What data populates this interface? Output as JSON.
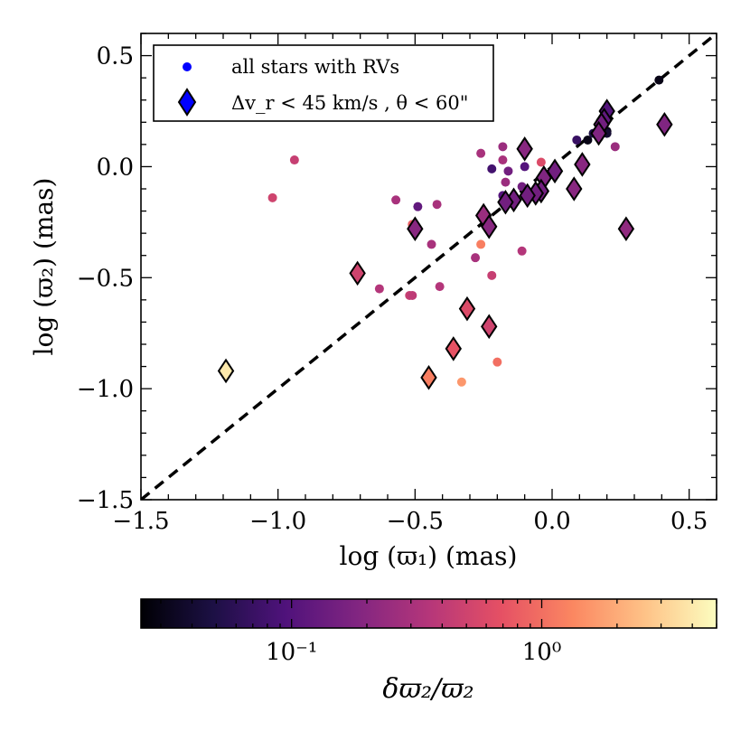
{
  "chart_data": {
    "type": "scatter",
    "xlabel": "log (ϖ₁) (mas)",
    "ylabel": "log (ϖ₂) (mas)",
    "xlim": [
      -1.5,
      0.6
    ],
    "ylim": [
      -1.5,
      0.6
    ],
    "x_ticks": [
      {
        "value": -1.5,
        "label": "−1.5"
      },
      {
        "value": -1.0,
        "label": "−1.0"
      },
      {
        "value": -0.5,
        "label": "−0.5"
      },
      {
        "value": 0.0,
        "label": "0.0"
      },
      {
        "value": 0.5,
        "label": "0.5"
      }
    ],
    "y_ticks": [
      {
        "value": -1.5,
        "label": "−1.5"
      },
      {
        "value": -1.0,
        "label": "−1.0"
      },
      {
        "value": -0.5,
        "label": "−0.5"
      },
      {
        "value": 0.0,
        "label": "0.0"
      },
      {
        "value": 0.5,
        "label": "0.5"
      }
    ],
    "reference_line": {
      "style": "dashed",
      "color": "#000000",
      "relation": "y = x"
    },
    "legend": {
      "position": "top-left",
      "entries": [
        {
          "label": "all stars with RVs",
          "marker": "circle",
          "color": "#0000ff"
        },
        {
          "label": "Δv_r < 45 km/s , θ < 60\"",
          "marker": "diamond",
          "color": "#0000ff"
        }
      ]
    },
    "colorbar": {
      "label": "δϖ₂/ϖ₂",
      "colormap": "magma",
      "scale": "log",
      "range": [
        0.025,
        5.0
      ],
      "ticks": [
        {
          "value": 0.1,
          "label": "10⁻¹"
        },
        {
          "value": 1.0,
          "label": "10⁰"
        }
      ],
      "stops": [
        "#000004",
        "#1c1044",
        "#4f127b",
        "#812581",
        "#b5367a",
        "#e55064",
        "#fb8761",
        "#fec287",
        "#fcfdbf"
      ]
    },
    "series": [
      {
        "name": "all stars with RVs",
        "marker": "circle",
        "points": [
          {
            "x": 0.39,
            "y": 0.39,
            "c": 0.03
          },
          {
            "x": 0.13,
            "y": 0.12,
            "c": 0.03
          },
          {
            "x": 0.2,
            "y": 0.16,
            "c": 0.03
          },
          {
            "x": 0.2,
            "y": 0.15,
            "c": 0.04
          },
          {
            "x": 0.17,
            "y": 0.13,
            "c": 0.04
          },
          {
            "x": 0.19,
            "y": 0.2,
            "c": 0.04
          },
          {
            "x": 0.15,
            "y": 0.15,
            "c": 0.05
          },
          {
            "x": 0.09,
            "y": 0.12,
            "c": 0.07
          },
          {
            "x": 0.23,
            "y": 0.09,
            "c": 0.25
          },
          {
            "x": -0.94,
            "y": 0.03,
            "c": 0.45
          },
          {
            "x": -1.02,
            "y": -0.14,
            "c": 0.5
          },
          {
            "x": -0.57,
            "y": -0.15,
            "c": 0.3
          },
          {
            "x": -0.49,
            "y": -0.18,
            "c": 0.12
          },
          {
            "x": -0.42,
            "y": -0.17,
            "c": 0.3
          },
          {
            "x": -0.51,
            "y": -0.26,
            "c": 0.8
          },
          {
            "x": -0.44,
            "y": -0.35,
            "c": 0.3
          },
          {
            "x": -0.41,
            "y": -0.54,
            "c": 0.35
          },
          {
            "x": -0.52,
            "y": -0.58,
            "c": 0.45
          },
          {
            "x": -0.51,
            "y": -0.58,
            "c": 0.4
          },
          {
            "x": -0.63,
            "y": -0.55,
            "c": 0.35
          },
          {
            "x": -0.26,
            "y": -0.35,
            "c": 1.2
          },
          {
            "x": -0.28,
            "y": -0.41,
            "c": 0.3
          },
          {
            "x": -0.22,
            "y": -0.49,
            "c": 0.45
          },
          {
            "x": -0.11,
            "y": -0.38,
            "c": 0.35
          },
          {
            "x": -0.2,
            "y": -0.88,
            "c": 1.0
          },
          {
            "x": -0.33,
            "y": -0.97,
            "c": 1.6
          },
          {
            "x": -0.26,
            "y": 0.06,
            "c": 0.3
          },
          {
            "x": -0.18,
            "y": 0.09,
            "c": 0.25
          },
          {
            "x": -0.18,
            "y": 0.03,
            "c": 0.3
          },
          {
            "x": -0.22,
            "y": -0.01,
            "c": 0.08
          },
          {
            "x": -0.16,
            "y": -0.02,
            "c": 0.15
          },
          {
            "x": -0.1,
            "y": 0.0,
            "c": 0.1
          },
          {
            "x": -0.17,
            "y": -0.07,
            "c": 0.25
          },
          {
            "x": -0.18,
            "y": -0.13,
            "c": 0.1
          },
          {
            "x": -0.11,
            "y": -0.09,
            "c": 0.15
          },
          {
            "x": -0.04,
            "y": 0.02,
            "c": 0.6
          },
          {
            "x": -0.02,
            "y": -0.04,
            "c": 0.3
          },
          {
            "x": 0.02,
            "y": -0.02,
            "c": 0.2
          }
        ]
      },
      {
        "name": "Δv_r < 45 km/s , θ < 60\"",
        "marker": "diamond",
        "points": [
          {
            "x": 0.2,
            "y": 0.25,
            "c": 0.1
          },
          {
            "x": 0.19,
            "y": 0.21,
            "c": 0.12
          },
          {
            "x": 0.18,
            "y": 0.19,
            "c": 0.15
          },
          {
            "x": 0.17,
            "y": 0.15,
            "c": 0.18
          },
          {
            "x": 0.41,
            "y": 0.19,
            "c": 0.18
          },
          {
            "x": 0.11,
            "y": 0.01,
            "c": 0.2
          },
          {
            "x": 0.08,
            "y": -0.1,
            "c": 0.2
          },
          {
            "x": 0.27,
            "y": -0.28,
            "c": 0.22
          },
          {
            "x": 0.01,
            "y": -0.02,
            "c": 0.15
          },
          {
            "x": -0.03,
            "y": -0.05,
            "c": 0.18
          },
          {
            "x": -0.04,
            "y": -0.11,
            "c": 0.15
          },
          {
            "x": -0.06,
            "y": -0.12,
            "c": 0.15
          },
          {
            "x": -0.09,
            "y": -0.13,
            "c": 0.15
          },
          {
            "x": -0.1,
            "y": 0.08,
            "c": 0.2
          },
          {
            "x": -0.14,
            "y": -0.15,
            "c": 0.15
          },
          {
            "x": -0.17,
            "y": -0.16,
            "c": 0.15
          },
          {
            "x": -0.25,
            "y": -0.22,
            "c": 0.25
          },
          {
            "x": -0.23,
            "y": -0.27,
            "c": 0.2
          },
          {
            "x": -0.5,
            "y": -0.28,
            "c": 0.2
          },
          {
            "x": -0.71,
            "y": -0.48,
            "c": 0.5
          },
          {
            "x": -0.31,
            "y": -0.64,
            "c": 0.6
          },
          {
            "x": -0.23,
            "y": -0.72,
            "c": 0.5
          },
          {
            "x": -0.36,
            "y": -0.82,
            "c": 0.7
          },
          {
            "x": -0.45,
            "y": -0.95,
            "c": 1.2
          },
          {
            "x": -1.19,
            "y": -0.92,
            "c": 4.0
          }
        ]
      }
    ]
  }
}
